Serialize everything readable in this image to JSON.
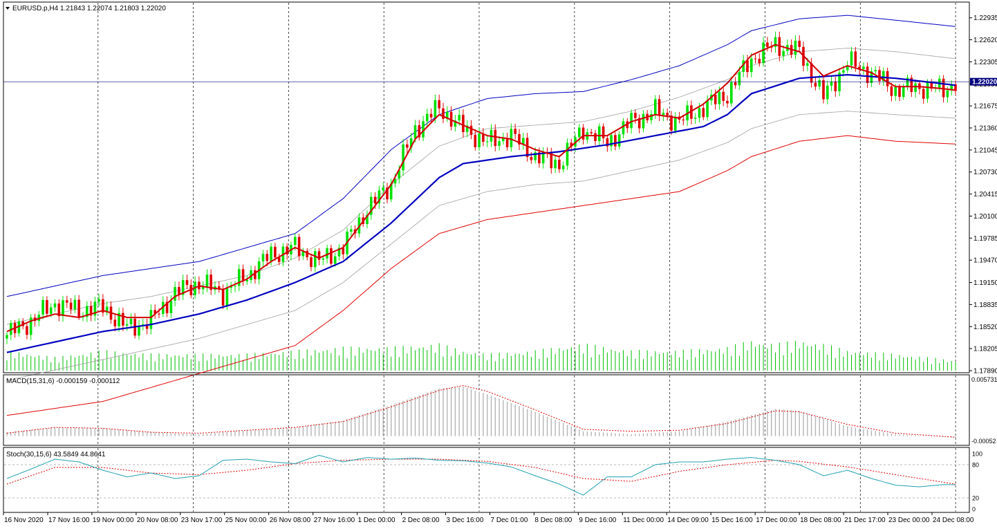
{
  "colors": {
    "background": "#ffffff",
    "frame": "#000000",
    "bull_candle": "#00e000",
    "bear_candle": "#e00000",
    "ma_fast": "#d00000",
    "ma_mid": "#0000c0",
    "band_outer_upper": "#0000c0",
    "band_outer_lower": "#e00000",
    "band_inner": "#a0a0a0",
    "volume": "#00c000",
    "macd_hist": "#b4b4b4",
    "macd_signal": "#e00000",
    "stoch_main": "#20a0b0",
    "stoch_signal": "#e00000",
    "price_tag_bg": "#000080",
    "price_tag_text": "#ffffff"
  },
  "header": {
    "symbol": "EURUSD.p,H4",
    "ohlc": "1.21843 1.22074 1.21803 1.22020"
  },
  "current_price_label": "1.22020",
  "chart_data": [
    {
      "type": "candlestick",
      "panel": "price",
      "title": "EURUSD.p,H4  1.21843 1.22074 1.21803 1.22020",
      "ylim": [
        1.1789,
        1.2309
      ],
      "y_ticks": [
        "1.22935",
        "1.22620",
        "1.22305",
        "1.21990",
        "1.21675",
        "1.21360",
        "1.21045",
        "1.20730",
        "1.20415",
        "1.20100",
        "1.19785",
        "1.19470",
        "1.19150",
        "1.18835",
        "1.18520",
        "1.18205",
        "1.17890"
      ],
      "x_ticks": [
        "16 Nov 2020",
        "17 Nov 16:00",
        "19 Nov 00:00",
        "20 Nov 08:00",
        "23 Nov 17:00",
        "25 Nov 00:00",
        "26 Nov 08:00",
        "27 Nov 16:00",
        "1 Dec 00:00",
        "2 Dec 08:00",
        "3 Dec 16:00",
        "7 Dec 01:00",
        "8 Dec 08:00",
        "9 Dec 16:00",
        "11 Dec 00:00",
        "14 Dec 09:00",
        "15 Dec 16:00",
        "17 Dec 00:00",
        "18 Dec 08:00",
        "21 Dec 17:00",
        "23 Dec 00:00",
        "24 Dec 08:00"
      ],
      "current_price": 1.2202,
      "close_anchors": [
        [
          0,
          1.184
        ],
        [
          6,
          1.186
        ],
        [
          12,
          1.1885
        ],
        [
          18,
          1.1875
        ],
        [
          24,
          1.188
        ],
        [
          30,
          1.185
        ],
        [
          36,
          1.186
        ],
        [
          42,
          1.19
        ],
        [
          48,
          1.1915
        ],
        [
          54,
          1.19
        ],
        [
          60,
          1.1925
        ],
        [
          66,
          1.1955
        ],
        [
          72,
          1.1965
        ],
        [
          78,
          1.1945
        ],
        [
          84,
          1.1965
        ],
        [
          90,
          1.202
        ],
        [
          96,
          1.2055
        ],
        [
          102,
          1.2135
        ],
        [
          108,
          1.2165
        ],
        [
          114,
          1.2135
        ],
        [
          120,
          1.2115
        ],
        [
          126,
          1.2125
        ],
        [
          132,
          1.2095
        ],
        [
          138,
          1.2085
        ],
        [
          144,
          1.2135
        ],
        [
          150,
          1.2115
        ],
        [
          156,
          1.2145
        ],
        [
          162,
          1.216
        ],
        [
          168,
          1.2145
        ],
        [
          174,
          1.2165
        ],
        [
          180,
          1.2185
        ],
        [
          186,
          1.2235
        ],
        [
          192,
          1.2255
        ],
        [
          198,
          1.2245
        ],
        [
          204,
          1.218
        ],
        [
          210,
          1.223
        ],
        [
          216,
          1.2215
        ],
        [
          222,
          1.219
        ],
        [
          228,
          1.2195
        ],
        [
          234,
          1.219
        ],
        [
          237,
          1.2202
        ]
      ],
      "ma_fast_anchors": [
        [
          0,
          1.1845
        ],
        [
          6,
          1.186
        ],
        [
          12,
          1.187
        ],
        [
          18,
          1.1865
        ],
        [
          24,
          1.1875
        ],
        [
          30,
          1.1865
        ],
        [
          36,
          1.1865
        ],
        [
          42,
          1.1895
        ],
        [
          48,
          1.191
        ],
        [
          54,
          1.1905
        ],
        [
          60,
          1.192
        ],
        [
          66,
          1.1945
        ],
        [
          72,
          1.1965
        ],
        [
          78,
          1.195
        ],
        [
          84,
          1.1965
        ],
        [
          90,
          1.201
        ],
        [
          96,
          1.2055
        ],
        [
          102,
          1.212
        ],
        [
          108,
          1.2155
        ],
        [
          114,
          1.214
        ],
        [
          120,
          1.2125
        ],
        [
          126,
          1.212
        ],
        [
          132,
          1.2105
        ],
        [
          138,
          1.2095
        ],
        [
          144,
          1.2125
        ],
        [
          150,
          1.2125
        ],
        [
          156,
          1.2145
        ],
        [
          162,
          1.2155
        ],
        [
          168,
          1.215
        ],
        [
          174,
          1.217
        ],
        [
          180,
          1.22
        ],
        [
          186,
          1.224
        ],
        [
          192,
          1.2255
        ],
        [
          198,
          1.2245
        ],
        [
          204,
          1.221
        ],
        [
          210,
          1.2225
        ],
        [
          216,
          1.2215
        ],
        [
          222,
          1.2195
        ],
        [
          228,
          1.2195
        ],
        [
          234,
          1.2192
        ],
        [
          237,
          1.219
        ]
      ],
      "ma_mid_anchors": [
        [
          0,
          1.1815
        ],
        [
          12,
          1.183
        ],
        [
          24,
          1.1845
        ],
        [
          36,
          1.1855
        ],
        [
          48,
          1.187
        ],
        [
          60,
          1.189
        ],
        [
          72,
          1.1915
        ],
        [
          84,
          1.1945
        ],
        [
          96,
          1.2
        ],
        [
          108,
          1.2065
        ],
        [
          114,
          1.2085
        ],
        [
          126,
          1.2095
        ],
        [
          138,
          1.2102
        ],
        [
          150,
          1.2112
        ],
        [
          162,
          1.2125
        ],
        [
          174,
          1.2138
        ],
        [
          180,
          1.2155
        ],
        [
          186,
          1.2185
        ],
        [
          198,
          1.2207
        ],
        [
          210,
          1.2212
        ],
        [
          222,
          1.2207
        ],
        [
          237,
          1.2197
        ]
      ],
      "band_outer_upper_anchors": [
        [
          0,
          1.1895
        ],
        [
          12,
          1.191
        ],
        [
          24,
          1.1925
        ],
        [
          36,
          1.1935
        ],
        [
          48,
          1.1945
        ],
        [
          60,
          1.1965
        ],
        [
          72,
          1.1985
        ],
        [
          84,
          1.2035
        ],
        [
          96,
          1.2105
        ],
        [
          108,
          1.2155
        ],
        [
          120,
          1.2178
        ],
        [
          132,
          1.2185
        ],
        [
          144,
          1.2188
        ],
        [
          156,
          1.2205
        ],
        [
          168,
          1.2225
        ],
        [
          180,
          1.2255
        ],
        [
          186,
          1.2275
        ],
        [
          198,
          1.2292
        ],
        [
          210,
          1.2297
        ],
        [
          222,
          1.229
        ],
        [
          237,
          1.2281
        ]
      ],
      "band_outer_lower_anchors": [
        [
          0,
          1.1725
        ],
        [
          12,
          1.1735
        ],
        [
          24,
          1.1745
        ],
        [
          36,
          1.1765
        ],
        [
          48,
          1.1785
        ],
        [
          60,
          1.1805
        ],
        [
          72,
          1.1825
        ],
        [
          84,
          1.1875
        ],
        [
          96,
          1.1935
        ],
        [
          108,
          1.1985
        ],
        [
          120,
          1.2005
        ],
        [
          132,
          1.2015
        ],
        [
          144,
          1.2025
        ],
        [
          156,
          1.2035
        ],
        [
          168,
          1.2045
        ],
        [
          180,
          1.2075
        ],
        [
          186,
          1.2095
        ],
        [
          198,
          1.2117
        ],
        [
          210,
          1.2125
        ],
        [
          222,
          1.2117
        ],
        [
          237,
          1.2113
        ]
      ],
      "band_inner_upper_anchors": [
        [
          0,
          1.1855
        ],
        [
          12,
          1.187
        ],
        [
          24,
          1.1885
        ],
        [
          36,
          1.1895
        ],
        [
          48,
          1.191
        ],
        [
          60,
          1.1925
        ],
        [
          72,
          1.195
        ],
        [
          84,
          1.199
        ],
        [
          96,
          1.2055
        ],
        [
          108,
          1.211
        ],
        [
          120,
          1.2135
        ],
        [
          132,
          1.214
        ],
        [
          144,
          1.2145
        ],
        [
          156,
          1.216
        ],
        [
          168,
          1.218
        ],
        [
          180,
          1.2205
        ],
        [
          186,
          1.2225
        ],
        [
          198,
          1.2245
        ],
        [
          210,
          1.225
        ],
        [
          222,
          1.2245
        ],
        [
          237,
          1.2235
        ]
      ],
      "band_inner_lower_anchors": [
        [
          0,
          1.1775
        ],
        [
          12,
          1.179
        ],
        [
          24,
          1.1805
        ],
        [
          36,
          1.182
        ],
        [
          48,
          1.1835
        ],
        [
          60,
          1.1855
        ],
        [
          72,
          1.1875
        ],
        [
          84,
          1.1915
        ],
        [
          96,
          1.197
        ],
        [
          108,
          1.2025
        ],
        [
          120,
          1.2045
        ],
        [
          132,
          1.2055
        ],
        [
          144,
          1.206
        ],
        [
          156,
          1.2075
        ],
        [
          168,
          1.209
        ],
        [
          180,
          1.2115
        ],
        [
          186,
          1.2135
        ],
        [
          198,
          1.2155
        ],
        [
          210,
          1.216
        ],
        [
          222,
          1.2155
        ],
        [
          237,
          1.215
        ]
      ]
    },
    {
      "type": "bar",
      "panel": "macd",
      "title": "MACD(15,31,6) -0.000159 -0.000112",
      "ylim": [
        -0.00052,
        0.00573
      ],
      "y_ticks": [
        "0.005731",
        "-0.00052"
      ],
      "hist_anchors": [
        [
          0,
          0.0004
        ],
        [
          12,
          0.0009
        ],
        [
          24,
          0.0008
        ],
        [
          36,
          0.0004
        ],
        [
          48,
          0.0002
        ],
        [
          60,
          0.0006
        ],
        [
          72,
          0.0009
        ],
        [
          84,
          0.0016
        ],
        [
          96,
          0.0032
        ],
        [
          108,
          0.0049
        ],
        [
          114,
          0.0051
        ],
        [
          120,
          0.0043
        ],
        [
          132,
          0.0025
        ],
        [
          144,
          0.0005
        ],
        [
          156,
          0.0002
        ],
        [
          168,
          0.0005
        ],
        [
          180,
          0.0015
        ],
        [
          192,
          0.0028
        ],
        [
          198,
          0.0026
        ],
        [
          210,
          0.001
        ],
        [
          222,
          0.0002
        ],
        [
          237,
          -0.00016
        ]
      ],
      "signal_anchors": [
        [
          0,
          0.0003
        ],
        [
          12,
          0.0009
        ],
        [
          24,
          0.0008
        ],
        [
          36,
          0.0004
        ],
        [
          48,
          0.0003
        ],
        [
          60,
          0.0006
        ],
        [
          72,
          0.0009
        ],
        [
          84,
          0.0015
        ],
        [
          96,
          0.003
        ],
        [
          108,
          0.0047
        ],
        [
          114,
          0.0052
        ],
        [
          120,
          0.0046
        ],
        [
          132,
          0.0027
        ],
        [
          144,
          0.0007
        ],
        [
          156,
          0.0005
        ],
        [
          168,
          0.0006
        ],
        [
          180,
          0.0013
        ],
        [
          192,
          0.0026
        ],
        [
          198,
          0.0025
        ],
        [
          210,
          0.0012
        ],
        [
          222,
          0.0003
        ],
        [
          237,
          -0.00011
        ]
      ]
    },
    {
      "type": "line",
      "panel": "stochastic",
      "title": "Stoch(30,15,6) 43.5849 44.8641",
      "ylim": [
        0,
        100
      ],
      "y_ticks": [
        "100",
        "80",
        "20",
        "0"
      ],
      "levels": [
        80,
        20
      ],
      "main_anchors": [
        [
          0,
          55
        ],
        [
          6,
          72
        ],
        [
          12,
          90
        ],
        [
          18,
          85
        ],
        [
          24,
          70
        ],
        [
          30,
          58
        ],
        [
          36,
          65
        ],
        [
          42,
          55
        ],
        [
          48,
          60
        ],
        [
          54,
          88
        ],
        [
          60,
          90
        ],
        [
          66,
          85
        ],
        [
          72,
          82
        ],
        [
          78,
          97
        ],
        [
          84,
          85
        ],
        [
          90,
          93
        ],
        [
          96,
          90
        ],
        [
          102,
          92
        ],
        [
          108,
          88
        ],
        [
          114,
          87
        ],
        [
          120,
          83
        ],
        [
          126,
          76
        ],
        [
          132,
          60
        ],
        [
          138,
          45
        ],
        [
          144,
          25
        ],
        [
          150,
          58
        ],
        [
          156,
          58
        ],
        [
          162,
          80
        ],
        [
          168,
          85
        ],
        [
          174,
          85
        ],
        [
          180,
          90
        ],
        [
          186,
          93
        ],
        [
          192,
          88
        ],
        [
          198,
          80
        ],
        [
          204,
          60
        ],
        [
          210,
          70
        ],
        [
          216,
          55
        ],
        [
          222,
          43
        ],
        [
          228,
          40
        ],
        [
          234,
          44
        ],
        [
          237,
          43.5849
        ]
      ],
      "signal_anchors": [
        [
          0,
          45
        ],
        [
          12,
          75
        ],
        [
          24,
          75
        ],
        [
          36,
          65
        ],
        [
          48,
          62
        ],
        [
          60,
          70
        ],
        [
          72,
          82
        ],
        [
          84,
          88
        ],
        [
          96,
          90
        ],
        [
          108,
          90
        ],
        [
          120,
          86
        ],
        [
          132,
          75
        ],
        [
          144,
          55
        ],
        [
          156,
          50
        ],
        [
          168,
          68
        ],
        [
          180,
          80
        ],
        [
          192,
          88
        ],
        [
          198,
          86
        ],
        [
          210,
          76
        ],
        [
          222,
          62
        ],
        [
          237,
          44.8641
        ]
      ]
    }
  ],
  "volume_data": {
    "type": "bar",
    "panel": "price",
    "anchors": [
      [
        0,
        30
      ],
      [
        12,
        20
      ],
      [
        24,
        30
      ],
      [
        36,
        25
      ],
      [
        48,
        25
      ],
      [
        60,
        25
      ],
      [
        72,
        30
      ],
      [
        84,
        35
      ],
      [
        96,
        35
      ],
      [
        108,
        40
      ],
      [
        114,
        30
      ],
      [
        120,
        25
      ],
      [
        132,
        30
      ],
      [
        144,
        40
      ],
      [
        156,
        30
      ],
      [
        168,
        30
      ],
      [
        180,
        35
      ],
      [
        186,
        45
      ],
      [
        192,
        40
      ],
      [
        198,
        45
      ],
      [
        204,
        40
      ],
      [
        210,
        30
      ],
      [
        222,
        25
      ],
      [
        237,
        15
      ]
    ]
  }
}
